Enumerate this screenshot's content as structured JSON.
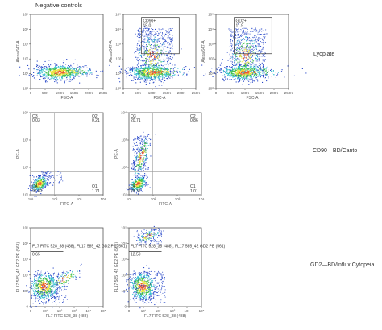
{
  "header": {
    "negative_controls": "Negative controls"
  },
  "row_labels": {
    "lyoplate": "Lyoplate",
    "cd90": "CD90—BD/Canto",
    "gd2": "GD2—BD/Influx Cytopeia"
  },
  "row1": {
    "x_ticks": [
      "0",
      "50K",
      "100K",
      "150K",
      "200K",
      "250K"
    ],
    "y_ticks": [
      "10⁵",
      "10⁴",
      "10³",
      "10²",
      "10¹",
      "10⁰"
    ],
    "panels": [
      {
        "xlabel": "FSC-A",
        "ylabel": "Alexa 647-A",
        "gate_label": "",
        "gate_value": ""
      },
      {
        "xlabel": "FSC-A",
        "ylabel": "Alexa 647-A",
        "gate_label": "CD90+",
        "gate_value": "15.0"
      },
      {
        "xlabel": "FSC-A",
        "ylabel": "Alexa 647-A",
        "gate_label": "GD2+",
        "gate_value": "11.9"
      }
    ]
  },
  "row2": {
    "x_ticks": [
      "10¹",
      "10²",
      "10³",
      "10⁴"
    ],
    "y_ticks": [
      "10⁴",
      "10³",
      "10²",
      "10¹"
    ],
    "panels": [
      {
        "xlabel": "FITC-A",
        "ylabel": "PE-A",
        "q_tl": "0.03",
        "q_tr": "0.21",
        "q_bl": "97.82",
        "q_br": "1.71"
      },
      {
        "xlabel": "FITC-A",
        "ylabel": "PE-A",
        "q_tl": "20.71",
        "q_tr": "0.86",
        "q_bl": "78.37",
        "q_br": "1.01"
      }
    ]
  },
  "row3": {
    "x_ticks": [
      "0",
      "10¹",
      "10²",
      "10³",
      "10⁴",
      "10⁵"
    ],
    "y_ticks": [
      "10⁵",
      "10⁴",
      "10³",
      "10²",
      "10¹",
      "0"
    ],
    "panels": [
      {
        "xlabel": "FL7 FITC 528_38 (488)",
        "ylabel": "FL17 585_42 GD2 PE (561)",
        "gate_label": "FL7 FITC 528_38 (488), FL17 585_42 GD2 PE (561)",
        "gate_value": "0.65"
      },
      {
        "xlabel": "FL7 FITC 528_38 (488)",
        "ylabel": "FL17 585_42 GD2 PE (561)",
        "gate_label": "FL7 FITC 528_38 (488), FL17 585_42 GD2 PE (561)",
        "gate_value": "12.59"
      }
    ]
  },
  "colors": {
    "density_low": "#2747c8",
    "density_mid": "#37c0d0",
    "density_midhigh": "#3fbf4a",
    "density_high": "#e8e43a",
    "density_peak": "#e8552b"
  }
}
